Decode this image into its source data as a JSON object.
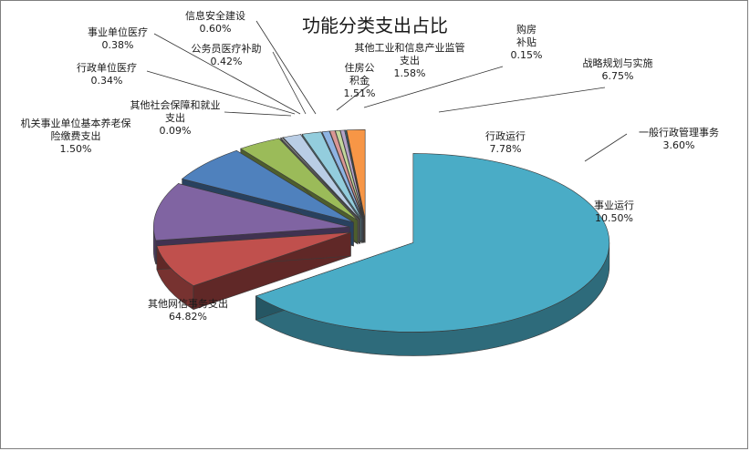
{
  "chart_data": {
    "type": "pie",
    "variant": "3d-exploded",
    "title": "功能分类支出占比",
    "legend": "none",
    "slices": [
      {
        "name": "其他网信事务支出",
        "value": 64.82,
        "label": "64.82%",
        "color": "#4aacc6"
      },
      {
        "name": "行政运行",
        "value": 7.78,
        "label": "7.78%",
        "color": "#c0504d"
      },
      {
        "name": "事业运行",
        "value": 10.5,
        "label": "10.50%",
        "color": "#8064a2"
      },
      {
        "name": "战略规划与实施",
        "value": 6.75,
        "label": "6.75%",
        "color": "#4f81bd"
      },
      {
        "name": "一般行政管理事务",
        "value": 3.6,
        "label": "3.60%",
        "color": "#9bbb59"
      },
      {
        "name": "购房补贴",
        "value": 0.15,
        "label": "0.15%",
        "color": "#a6a6a6"
      },
      {
        "name": "住房公积金",
        "value": 1.51,
        "label": "1.51%",
        "color": "#b9cde5"
      },
      {
        "name": "其他工业和信息产业监管支出",
        "value": 1.58,
        "label": "1.58%",
        "color": "#93cddd"
      },
      {
        "name": "信息安全建设",
        "value": 0.6,
        "label": "0.60%",
        "color": "#8eb4e3"
      },
      {
        "name": "公务员医疗补助",
        "value": 0.42,
        "label": "0.42%",
        "color": "#d99694"
      },
      {
        "name": "事业单位医疗",
        "value": 0.38,
        "label": "0.38%",
        "color": "#c3d69b"
      },
      {
        "name": "行政单位医疗",
        "value": 0.34,
        "label": "0.34%",
        "color": "#b3a2c7"
      },
      {
        "name": "其他社会保障和就业支出",
        "value": 0.09,
        "label": "0.09%",
        "color": "#31859c"
      },
      {
        "name": "机关事业单位基本养老保险缴费支出",
        "value": 1.5,
        "label": "1.50%",
        "color": "#f79646"
      }
    ]
  }
}
